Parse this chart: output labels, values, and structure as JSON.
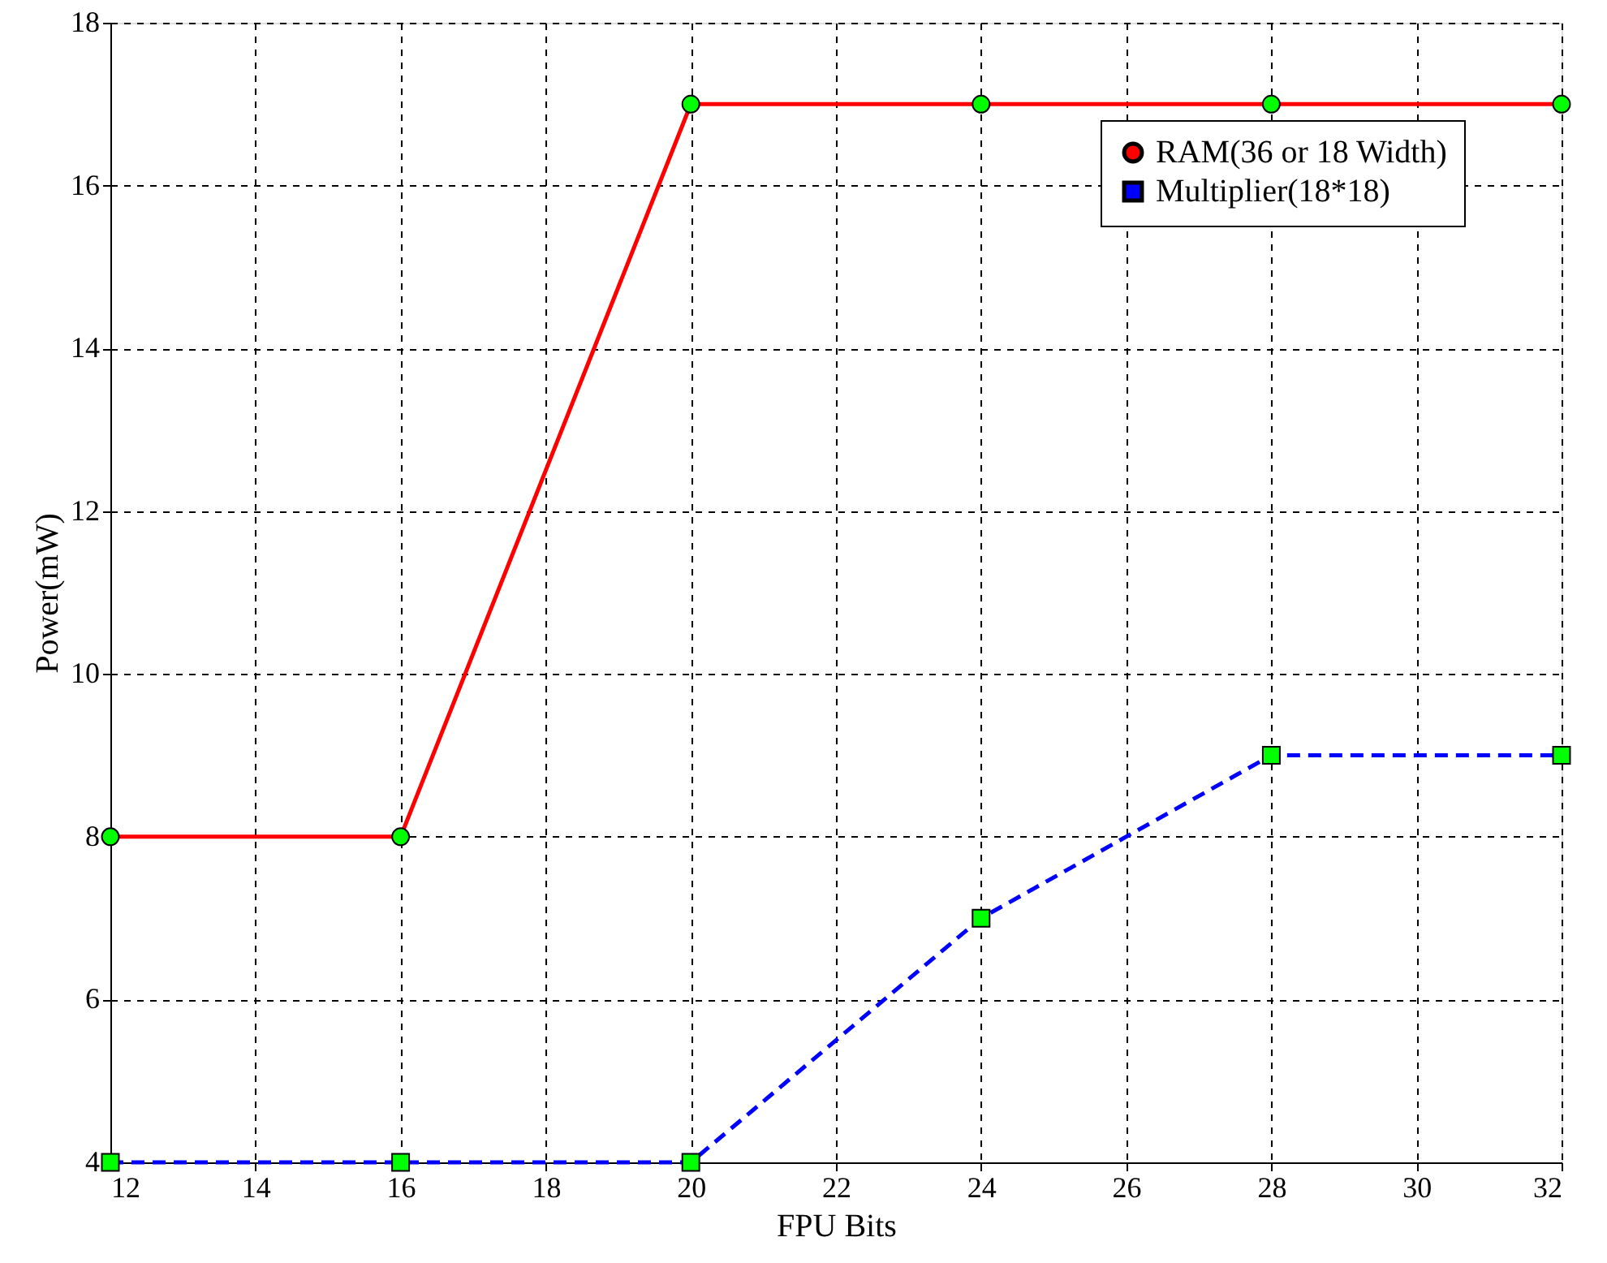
{
  "chart_data": {
    "type": "line",
    "xlabel": "FPU Bits",
    "ylabel": "Power(mW)",
    "x": [
      12,
      16,
      20,
      24,
      28,
      32
    ],
    "series": [
      {
        "name": "RAM(36 or 18 Width)",
        "color": "#ff0000",
        "values": [
          8,
          8,
          17,
          17,
          17,
          17
        ],
        "marker": "circle",
        "line_style": "solid"
      },
      {
        "name": "Multiplier(18*18)",
        "color": "#0000ff",
        "values": [
          4,
          4,
          4,
          7,
          9,
          9
        ],
        "marker": "square",
        "line_style": "dashed"
      }
    ],
    "xlim": [
      12,
      32
    ],
    "xticks": [
      12,
      14,
      16,
      18,
      20,
      22,
      24,
      26,
      28,
      30,
      32
    ],
    "ylim": [
      4,
      18
    ],
    "yticks": [
      4,
      6,
      8,
      10,
      12,
      14,
      16,
      18
    ],
    "grid": true,
    "legend": "top right"
  }
}
